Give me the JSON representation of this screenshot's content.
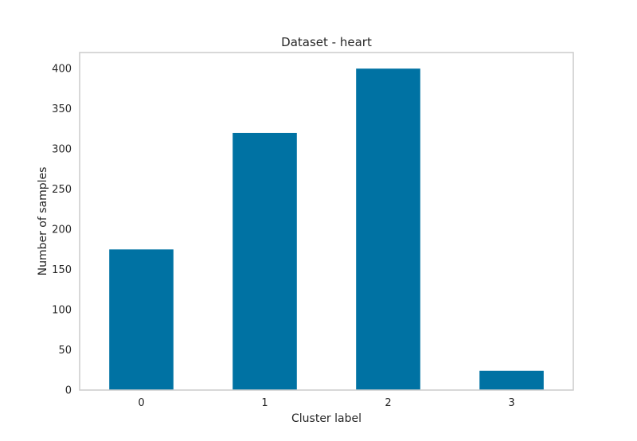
{
  "chart_data": {
    "type": "bar",
    "title": "Dataset - heart",
    "xlabel": "Cluster label",
    "ylabel": "Number of samples",
    "categories": [
      "0",
      "1",
      "2",
      "3"
    ],
    "values": [
      175,
      320,
      400,
      24
    ],
    "ylim": [
      0,
      420
    ],
    "yticks": [
      0,
      50,
      100,
      150,
      200,
      250,
      300,
      350,
      400
    ],
    "grid": false,
    "legend": "none",
    "bar_color": "#0072a3",
    "frame_color": "#cccccc"
  }
}
